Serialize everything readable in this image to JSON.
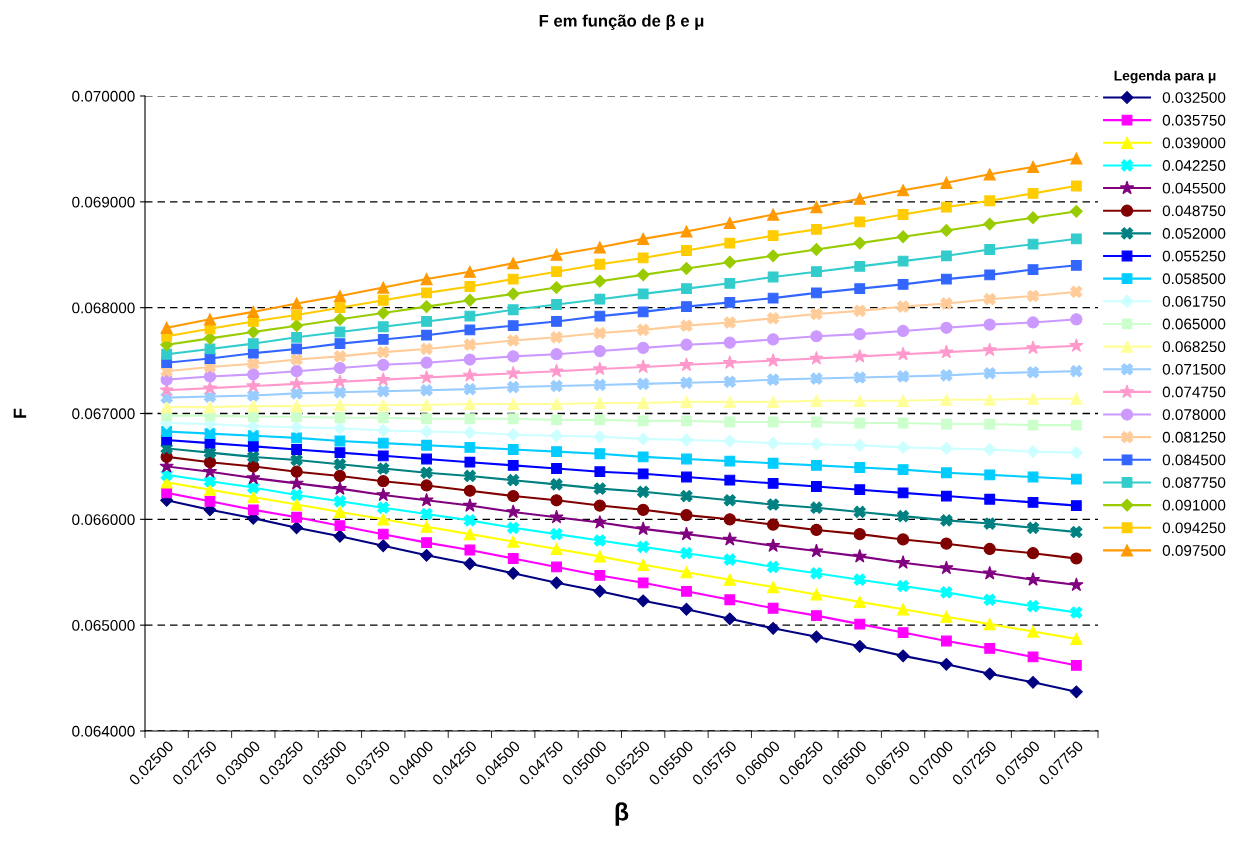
{
  "chart_data": {
    "type": "line",
    "title": "F em função de β e μ",
    "xlabel": "β",
    "ylabel": "F",
    "legend_title": "Legenda para μ",
    "legend": "right",
    "grid": "y",
    "line_style": "solid",
    "categories": [
      "0.02500",
      "0.02750",
      "0.03000",
      "0.03250",
      "0.03500",
      "0.03750",
      "0.04000",
      "0.04250",
      "0.04500",
      "0.04750",
      "0.05000",
      "0.05250",
      "0.05500",
      "0.05750",
      "0.06000",
      "0.06250",
      "0.06500",
      "0.06750",
      "0.07000",
      "0.07250",
      "0.07500",
      "0.07750"
    ],
    "ylim": [
      0.064,
      0.07
    ],
    "yticks": [
      {
        "value": 0.064,
        "label": "0.064000"
      },
      {
        "value": 0.065,
        "label": "0.065000"
      },
      {
        "value": 0.066,
        "label": "0.066000"
      },
      {
        "value": 0.067,
        "label": "0.067000"
      },
      {
        "value": 0.068,
        "label": "0.068000"
      },
      {
        "value": 0.069,
        "label": "0.069000"
      },
      {
        "value": 0.07,
        "label": "0.070000"
      }
    ],
    "series": [
      {
        "name": "0.032500",
        "color": "#000080",
        "marker": "diamond",
        "values": [
          0.06618,
          0.06609,
          0.06601,
          0.06592,
          0.06584,
          0.06575,
          0.06566,
          0.06558,
          0.06549,
          0.0654,
          0.06532,
          0.06523,
          0.06515,
          0.06506,
          0.06497,
          0.06489,
          0.0648,
          0.06471,
          0.06463,
          0.06454,
          0.06446,
          0.06437
        ]
      },
      {
        "name": "0.035750",
        "color": "#ff00ff",
        "marker": "square",
        "values": [
          0.06625,
          0.06617,
          0.06609,
          0.06602,
          0.06594,
          0.06586,
          0.06578,
          0.06571,
          0.06563,
          0.06555,
          0.06547,
          0.0654,
          0.06532,
          0.06524,
          0.06516,
          0.06509,
          0.06501,
          0.06493,
          0.06485,
          0.06478,
          0.0647,
          0.06462
        ]
      },
      {
        "name": "0.039000",
        "color": "#ffff00",
        "marker": "triangle",
        "values": [
          0.06635,
          0.06628,
          0.06621,
          0.06614,
          0.06607,
          0.066,
          0.06593,
          0.06586,
          0.06579,
          0.06572,
          0.06565,
          0.06557,
          0.0655,
          0.06543,
          0.06536,
          0.06529,
          0.06522,
          0.06515,
          0.06508,
          0.06501,
          0.06494,
          0.06487
        ]
      },
      {
        "name": "0.042250",
        "color": "#00ffff",
        "marker": "cross",
        "values": [
          0.06642,
          0.06636,
          0.0663,
          0.06623,
          0.06617,
          0.06611,
          0.06605,
          0.06599,
          0.06592,
          0.06586,
          0.0658,
          0.06574,
          0.06568,
          0.06562,
          0.06555,
          0.06549,
          0.06543,
          0.06537,
          0.06531,
          0.06524,
          0.06518,
          0.06512
        ]
      },
      {
        "name": "0.045500",
        "color": "#800080",
        "marker": "star",
        "values": [
          0.0665,
          0.06645,
          0.06639,
          0.06634,
          0.06629,
          0.06623,
          0.06618,
          0.06613,
          0.06607,
          0.06602,
          0.06597,
          0.06591,
          0.06586,
          0.06581,
          0.06575,
          0.0657,
          0.06565,
          0.06559,
          0.06554,
          0.06549,
          0.06543,
          0.06538
        ]
      },
      {
        "name": "0.048750",
        "color": "#800000",
        "marker": "circle",
        "values": [
          0.06659,
          0.06654,
          0.0665,
          0.06645,
          0.06641,
          0.06636,
          0.06632,
          0.06627,
          0.06622,
          0.06618,
          0.06613,
          0.06609,
          0.06604,
          0.066,
          0.06595,
          0.0659,
          0.06586,
          0.06581,
          0.06577,
          0.06572,
          0.06568,
          0.06563
        ]
      },
      {
        "name": "0.052000",
        "color": "#008080",
        "marker": "cross",
        "values": [
          0.06667,
          0.06663,
          0.06659,
          0.06656,
          0.06652,
          0.06648,
          0.06644,
          0.06641,
          0.06637,
          0.06633,
          0.06629,
          0.06626,
          0.06622,
          0.06618,
          0.06614,
          0.06611,
          0.06607,
          0.06603,
          0.06599,
          0.06596,
          0.06592,
          0.06588
        ]
      },
      {
        "name": "0.055250",
        "color": "#0000ff",
        "marker": "square",
        "values": [
          0.06675,
          0.06672,
          0.06669,
          0.06666,
          0.06663,
          0.0666,
          0.06657,
          0.06654,
          0.06651,
          0.06648,
          0.06645,
          0.06643,
          0.0664,
          0.06637,
          0.06634,
          0.06631,
          0.06628,
          0.06625,
          0.06622,
          0.06619,
          0.06616,
          0.06613
        ]
      },
      {
        "name": "0.058500",
        "color": "#00ccff",
        "marker": "square",
        "values": [
          0.06683,
          0.06681,
          0.06679,
          0.06677,
          0.06674,
          0.06672,
          0.0667,
          0.06668,
          0.06666,
          0.06664,
          0.06662,
          0.06659,
          0.06657,
          0.06655,
          0.06653,
          0.06651,
          0.06649,
          0.06647,
          0.06644,
          0.06642,
          0.0664,
          0.06638
        ]
      },
      {
        "name": "0.061750",
        "color": "#ccffff",
        "marker": "diamond",
        "values": [
          0.06691,
          0.0669,
          0.06688,
          0.06687,
          0.06686,
          0.06684,
          0.06683,
          0.06682,
          0.0668,
          0.06679,
          0.06678,
          0.06676,
          0.06675,
          0.06674,
          0.06672,
          0.06671,
          0.0667,
          0.06668,
          0.06667,
          0.06666,
          0.06664,
          0.06663
        ]
      },
      {
        "name": "0.065000",
        "color": "#ccffcc",
        "marker": "square",
        "values": [
          0.06698,
          0.06698,
          0.06697,
          0.06697,
          0.06696,
          0.06696,
          0.06695,
          0.06695,
          0.06695,
          0.06694,
          0.06694,
          0.06693,
          0.06693,
          0.06692,
          0.06692,
          0.06692,
          0.06691,
          0.06691,
          0.0669,
          0.0669,
          0.06689,
          0.06689
        ]
      },
      {
        "name": "0.068250",
        "color": "#ffff99",
        "marker": "triangle",
        "values": [
          0.06706,
          0.06706,
          0.06707,
          0.06707,
          0.06708,
          0.06708,
          0.06708,
          0.06709,
          0.06709,
          0.06709,
          0.0671,
          0.0671,
          0.06711,
          0.06711,
          0.06711,
          0.06712,
          0.06712,
          0.06712,
          0.06713,
          0.06713,
          0.06714,
          0.06714
        ]
      },
      {
        "name": "0.071500",
        "color": "#99ccff",
        "marker": "cross",
        "values": [
          0.06715,
          0.06716,
          0.06717,
          0.06719,
          0.0672,
          0.06721,
          0.06722,
          0.06723,
          0.06725,
          0.06726,
          0.06727,
          0.06728,
          0.06729,
          0.0673,
          0.06732,
          0.06733,
          0.06734,
          0.06735,
          0.06736,
          0.06738,
          0.06739,
          0.0674
        ]
      },
      {
        "name": "0.074750",
        "color": "#ff99cc",
        "marker": "star",
        "values": [
          0.06722,
          0.06724,
          0.06726,
          0.06728,
          0.0673,
          0.06732,
          0.06734,
          0.06736,
          0.06738,
          0.0674,
          0.06742,
          0.06744,
          0.06746,
          0.06748,
          0.0675,
          0.06752,
          0.06754,
          0.06756,
          0.06758,
          0.0676,
          0.06762,
          0.06764
        ]
      },
      {
        "name": "0.078000",
        "color": "#cc99ff",
        "marker": "circle",
        "values": [
          0.06732,
          0.06735,
          0.06737,
          0.0674,
          0.06743,
          0.06746,
          0.06748,
          0.06751,
          0.06754,
          0.06756,
          0.06759,
          0.06762,
          0.06765,
          0.06767,
          0.0677,
          0.06773,
          0.06775,
          0.06778,
          0.06781,
          0.06784,
          0.06786,
          0.06789
        ]
      },
      {
        "name": "0.081250",
        "color": "#ffcc99",
        "marker": "cross",
        "values": [
          0.0674,
          0.06744,
          0.06747,
          0.06751,
          0.06754,
          0.06758,
          0.06761,
          0.06765,
          0.06769,
          0.06772,
          0.06776,
          0.06779,
          0.06783,
          0.06786,
          0.0679,
          0.06794,
          0.06797,
          0.06801,
          0.06804,
          0.06808,
          0.06811,
          0.06815
        ]
      },
      {
        "name": "0.084500",
        "color": "#3366ff",
        "marker": "square",
        "values": [
          0.06748,
          0.06752,
          0.06757,
          0.06761,
          0.06766,
          0.0677,
          0.06774,
          0.06779,
          0.06783,
          0.06787,
          0.06792,
          0.06796,
          0.06801,
          0.06805,
          0.06809,
          0.06814,
          0.06818,
          0.06822,
          0.06827,
          0.06831,
          0.06836,
          0.0684
        ]
      },
      {
        "name": "0.087750",
        "color": "#33cccc",
        "marker": "square",
        "values": [
          0.06756,
          0.06761,
          0.06766,
          0.06772,
          0.06777,
          0.06782,
          0.06787,
          0.06792,
          0.06798,
          0.06803,
          0.06808,
          0.06813,
          0.06818,
          0.06823,
          0.06829,
          0.06834,
          0.06839,
          0.06844,
          0.06849,
          0.06855,
          0.0686,
          0.06865
        ]
      },
      {
        "name": "0.091000",
        "color": "#99cc00",
        "marker": "diamond",
        "values": [
          0.06765,
          0.06771,
          0.06777,
          0.06783,
          0.06789,
          0.06795,
          0.06801,
          0.06807,
          0.06813,
          0.06819,
          0.06825,
          0.06831,
          0.06837,
          0.06843,
          0.06849,
          0.06855,
          0.06861,
          0.06867,
          0.06873,
          0.06879,
          0.06885,
          0.06891
        ]
      },
      {
        "name": "0.094250",
        "color": "#ffcc00",
        "marker": "square",
        "values": [
          0.06773,
          0.0678,
          0.06787,
          0.06793,
          0.068,
          0.06807,
          0.06814,
          0.0682,
          0.06827,
          0.06834,
          0.06841,
          0.06847,
          0.06854,
          0.06861,
          0.06868,
          0.06874,
          0.06881,
          0.06888,
          0.06895,
          0.06901,
          0.06908,
          0.06915
        ]
      },
      {
        "name": "0.097500",
        "color": "#ff9900",
        "marker": "triangle",
        "values": [
          0.06781,
          0.06789,
          0.06796,
          0.06804,
          0.06811,
          0.06819,
          0.06827,
          0.06834,
          0.06842,
          0.0685,
          0.06857,
          0.06865,
          0.06872,
          0.0688,
          0.06888,
          0.06895,
          0.06903,
          0.06911,
          0.06918,
          0.06926,
          0.06933,
          0.06941
        ]
      }
    ]
  }
}
